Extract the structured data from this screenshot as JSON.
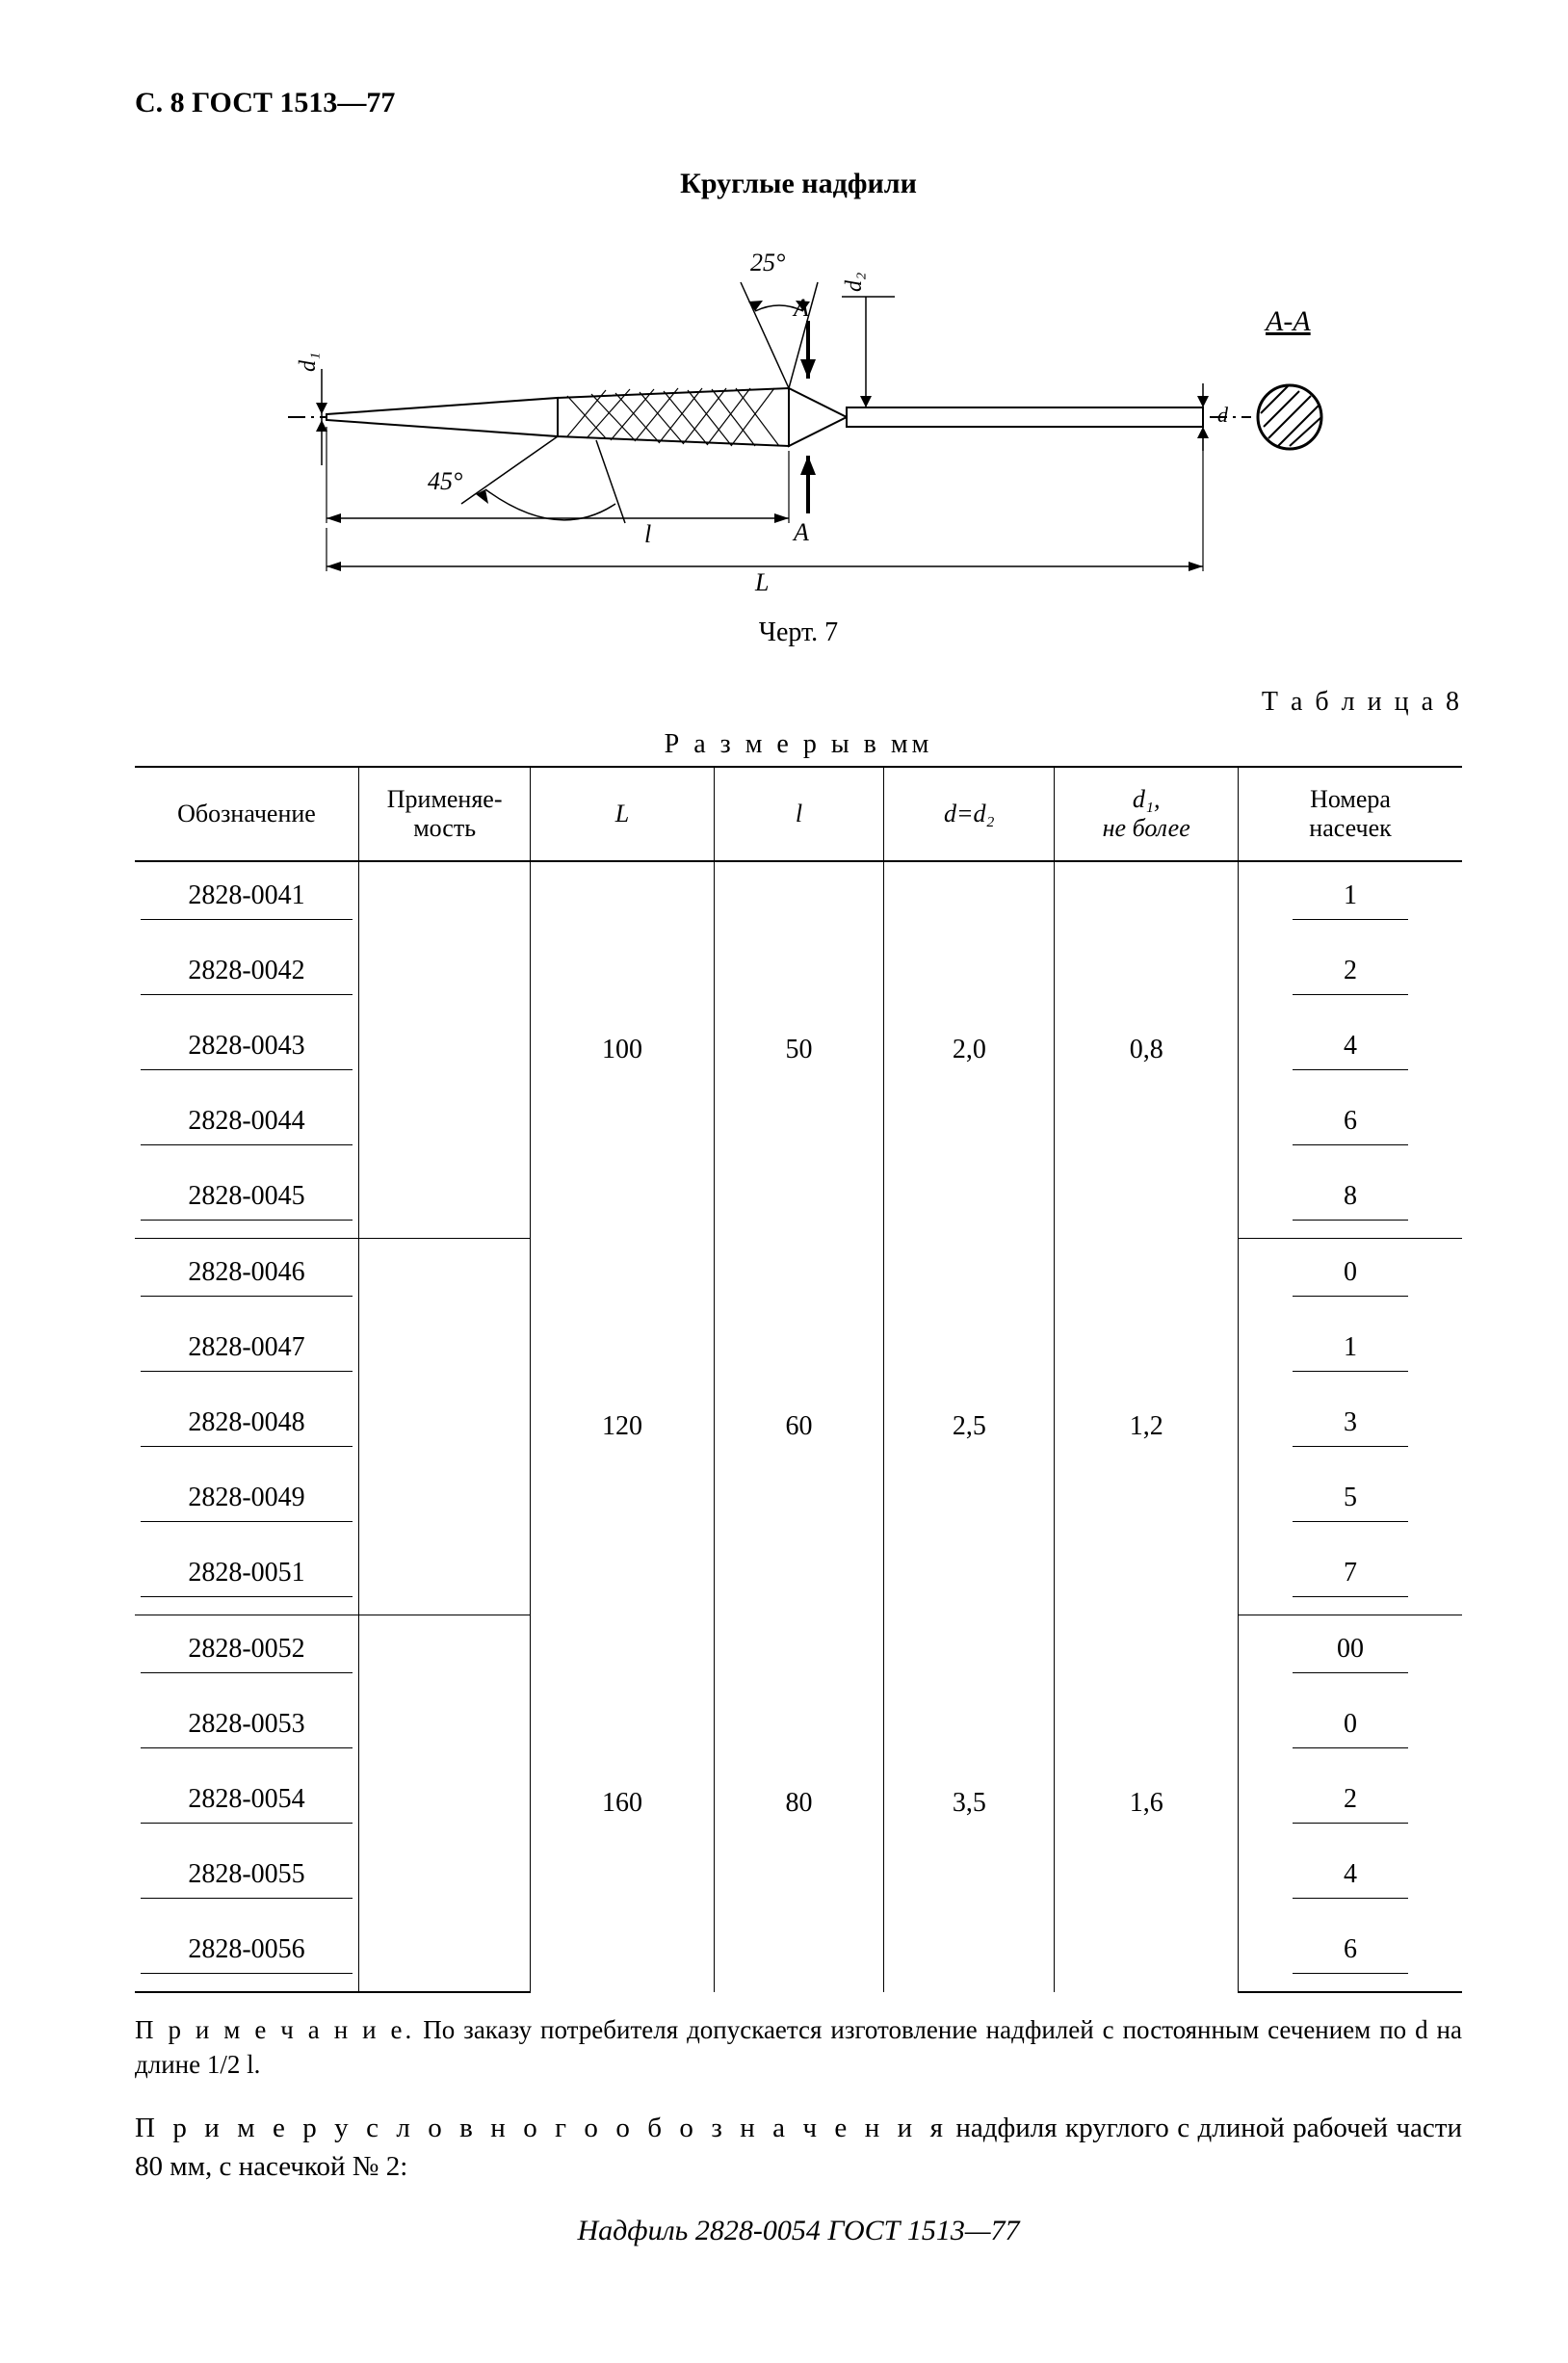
{
  "pageHeader": "С. 8 ГОСТ 1513—77",
  "title": "Круглые надфили",
  "figure": {
    "caption": "Черт. 7",
    "angle1": "25°",
    "angle2": "45°",
    "dimA": "A",
    "dimA2": "A",
    "sectionLabel": "A-A",
    "d1": "d₁",
    "d2": "d₂",
    "d": "d",
    "l": "l",
    "L": "L"
  },
  "tableNumber": "Т а б л и ц а 8",
  "unitsLine": "Р а з м е р ы   в   мм",
  "table": {
    "headers": {
      "designation": "Обозначение",
      "applicability": "Применяе-\nмость",
      "L": "L",
      "l": "l",
      "d": "d=d₂",
      "d1": "d₁,\nне более",
      "notches": "Номера\nнасечек"
    },
    "groups": [
      {
        "L": "100",
        "l": "50",
        "d": "2,0",
        "d1": "0,8",
        "rows": [
          {
            "designation": "2828-0041",
            "notch": "1"
          },
          {
            "designation": "2828-0042",
            "notch": "2"
          },
          {
            "designation": "2828-0043",
            "notch": "4"
          },
          {
            "designation": "2828-0044",
            "notch": "6"
          },
          {
            "designation": "2828-0045",
            "notch": "8"
          }
        ]
      },
      {
        "L": "120",
        "l": "60",
        "d": "2,5",
        "d1": "1,2",
        "rows": [
          {
            "designation": "2828-0046",
            "notch": "0"
          },
          {
            "designation": "2828-0047",
            "notch": "1"
          },
          {
            "designation": "2828-0048",
            "notch": "3"
          },
          {
            "designation": "2828-0049",
            "notch": "5"
          },
          {
            "designation": "2828-0051",
            "notch": "7"
          }
        ]
      },
      {
        "L": "160",
        "l": "80",
        "d": "3,5",
        "d1": "1,6",
        "rows": [
          {
            "designation": "2828-0052",
            "notch": "00"
          },
          {
            "designation": "2828-0053",
            "notch": "0"
          },
          {
            "designation": "2828-0054",
            "notch": "2"
          },
          {
            "designation": "2828-0055",
            "notch": "4"
          },
          {
            "designation": "2828-0056",
            "notch": "6"
          }
        ]
      }
    ]
  },
  "noteLabel": "П р и м е ч а н и е.",
  "noteText": " По заказу потребителя допускается изготовление надфилей с постоянным сечением по d на длине 1/2 l.",
  "exampleLabel": "П р и м е р   у с л о в н о г о   о б о з н а ч е н и я",
  "exampleText": "   надфиля круглого с длиной рабочей части 80 мм, с насечкой № 2:",
  "exampleDesignation": "Надфиль 2828-0054 ГОСТ 1513—77"
}
